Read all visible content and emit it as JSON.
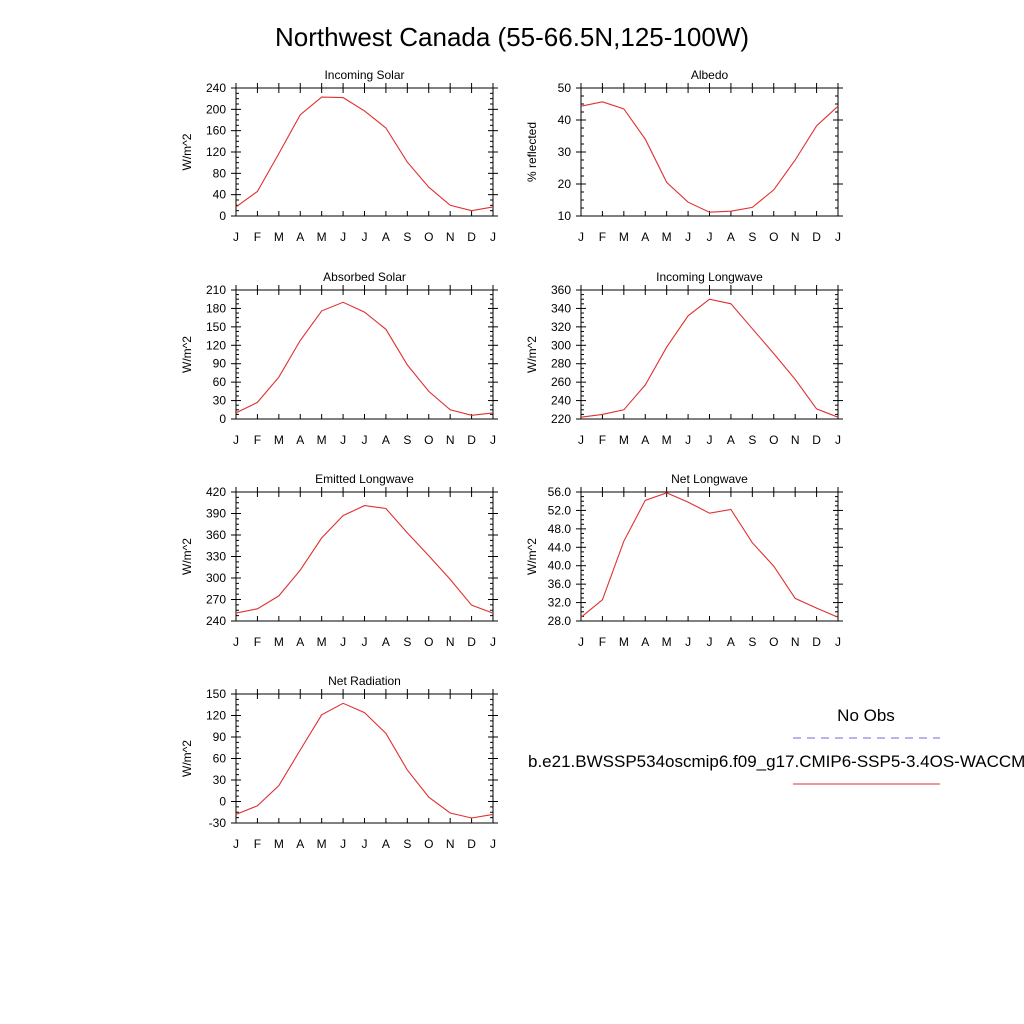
{
  "page": {
    "title": "Northwest Canada (55-66.5N,125-100W)"
  },
  "legend": {
    "obs_label": "No Obs",
    "obs_color": "#6a6ae6",
    "obs_style": "dashed",
    "model_label": "b.e21.BWSSP534oscmip6.f09_g17.CMIP6-SSP5-3.4OS-WACCM",
    "model_color": "#e03030"
  },
  "months": [
    "J",
    "F",
    "M",
    "A",
    "M",
    "J",
    "J",
    "A",
    "S",
    "O",
    "N",
    "D",
    "J"
  ],
  "chart_data": [
    {
      "type": "line",
      "title": "Incoming Solar",
      "ylabel": "W/m^2",
      "ylim": [
        0,
        240
      ],
      "yticks": [
        "0",
        "40",
        "80",
        "120",
        "160",
        "200",
        "240"
      ],
      "series": [
        {
          "values": [
            17,
            46,
            117,
            190,
            223,
            222,
            197,
            165,
            101,
            54,
            20,
            10,
            17
          ]
        }
      ]
    },
    {
      "type": "line",
      "title": "Albedo",
      "ylabel": "% reflected",
      "ylim": [
        10,
        50
      ],
      "yticks": [
        "10",
        "20",
        "30",
        "40",
        "50"
      ],
      "series": [
        {
          "values": [
            44.3,
            45.7,
            43.5,
            34,
            20.5,
            14.3,
            11.2,
            11.5,
            12.7,
            18.2,
            27.5,
            38.2,
            44.3
          ]
        }
      ]
    },
    {
      "type": "line",
      "title": "Absorbed Solar",
      "ylabel": "W/m^2",
      "ylim": [
        0,
        210
      ],
      "yticks": [
        "0",
        "30",
        "60",
        "90",
        "120",
        "150",
        "180",
        "210"
      ],
      "series": [
        {
          "values": [
            10,
            27,
            68,
            128,
            176,
            190,
            174,
            146,
            88,
            45,
            15,
            6,
            10
          ]
        }
      ]
    },
    {
      "type": "line",
      "title": "Incoming Longwave",
      "ylabel": "W/m^2",
      "ylim": [
        220,
        360
      ],
      "yticks": [
        "220",
        "240",
        "260",
        "280",
        "300",
        "320",
        "340",
        "360"
      ],
      "series": [
        {
          "values": [
            222,
            225,
            230,
            257,
            298,
            332,
            350,
            345,
            318,
            291,
            263,
            231,
            222
          ]
        }
      ]
    },
    {
      "type": "line",
      "title": "Emitted Longwave",
      "ylabel": "W/m^2",
      "ylim": [
        240,
        420
      ],
      "yticks": [
        "240",
        "270",
        "300",
        "330",
        "360",
        "390",
        "420"
      ],
      "series": [
        {
          "values": [
            251,
            257,
            275,
            311,
            356,
            387,
            401,
            397,
            363,
            331,
            298,
            262,
            251
          ]
        }
      ]
    },
    {
      "type": "line",
      "title": "Net Longwave",
      "ylabel": "W/m^2",
      "ylim": [
        28,
        56
      ],
      "yticks": [
        "28.0",
        "32.0",
        "36.0",
        "40.0",
        "44.0",
        "48.0",
        "52.0",
        "56.0"
      ],
      "series": [
        {
          "values": [
            28.8,
            32.6,
            45.3,
            54.2,
            55.8,
            53.8,
            51.4,
            52.2,
            45,
            39.9,
            32.9,
            30.8,
            28.8
          ]
        }
      ]
    },
    {
      "type": "line",
      "title": "Net Radiation",
      "ylabel": "W/m^2",
      "ylim": [
        -30,
        150
      ],
      "yticks": [
        "-30",
        "0",
        "30",
        "60",
        "90",
        "120",
        "150"
      ],
      "series": [
        {
          "values": [
            -18,
            -6,
            22,
            72,
            121,
            137,
            124,
            95,
            44,
            6,
            -16,
            -23,
            -18
          ]
        }
      ]
    }
  ]
}
